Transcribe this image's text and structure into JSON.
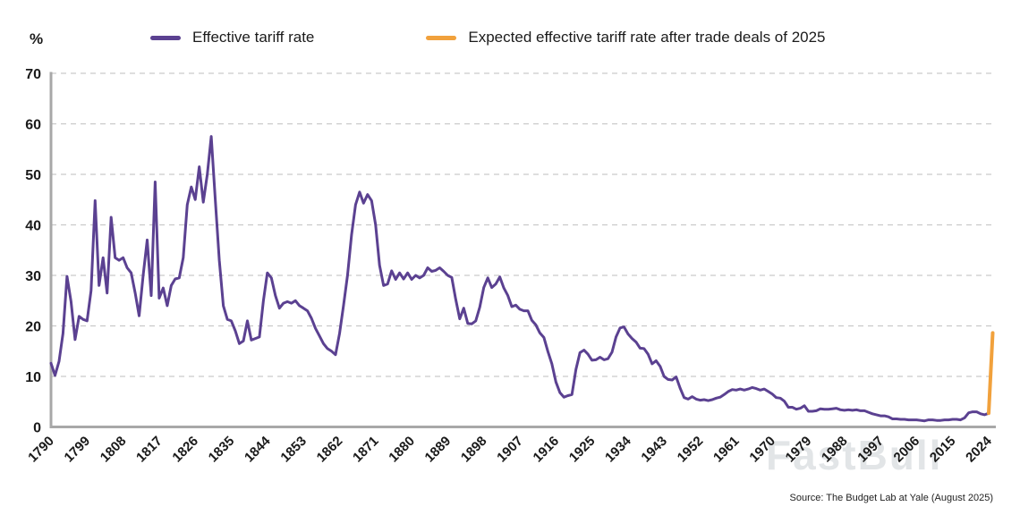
{
  "header": {
    "unit_label": "%"
  },
  "watermark": "FastBull",
  "chart_data": {
    "type": "line",
    "title": "",
    "xlabel": "",
    "ylabel": "%",
    "ylim": [
      0,
      70
    ],
    "xlim": [
      1790,
      2026
    ],
    "y_ticks": [
      0,
      10,
      20,
      30,
      40,
      50,
      60,
      70
    ],
    "x_ticks": [
      1790,
      1799,
      1808,
      1817,
      1826,
      1835,
      1844,
      1853,
      1862,
      1871,
      1880,
      1889,
      1898,
      1907,
      1916,
      1925,
      1934,
      1943,
      1952,
      1961,
      1970,
      1979,
      1988,
      1997,
      2006,
      2015,
      2024
    ],
    "grid": "horizontal-dashed",
    "legend_position": "top",
    "source": "Source: The Budget Lab at Yale (August 2025)",
    "series": [
      {
        "name": "Effective tariff rate",
        "color": "#5b4191",
        "x_start": 1790,
        "x_step": 1,
        "values": [
          12.6,
          10.2,
          13.0,
          18.5,
          29.8,
          24.8,
          17.3,
          21.9,
          21.3,
          21.0,
          27.0,
          44.8,
          28.0,
          33.5,
          26.5,
          41.5,
          33.5,
          33.0,
          33.5,
          31.5,
          30.5,
          26.5,
          22.0,
          30.0,
          37.0,
          26.0,
          48.5,
          25.5,
          27.5,
          24.0,
          28.0,
          29.3,
          29.5,
          33.5,
          44.0,
          47.5,
          45.0,
          51.5,
          44.5,
          50.0,
          57.5,
          45.0,
          33.0,
          24.0,
          21.3,
          21.0,
          19.0,
          16.5,
          17.0,
          21.0,
          17.2,
          17.5,
          17.8,
          25.0,
          30.5,
          29.5,
          26.0,
          23.5,
          24.5,
          24.8,
          24.5,
          25.0,
          24.0,
          23.5,
          23.0,
          21.5,
          19.5,
          18.0,
          16.5,
          15.5,
          15.0,
          14.3,
          18.5,
          24.0,
          30.0,
          38.0,
          44.0,
          46.5,
          44.3,
          46.0,
          44.8,
          40.0,
          32.0,
          28.0,
          28.3,
          30.9,
          29.2,
          30.5,
          29.3,
          30.5,
          29.2,
          30.0,
          29.5,
          30.0,
          31.5,
          30.8,
          31.0,
          31.5,
          30.8,
          30.0,
          29.6,
          25.3,
          21.4,
          23.5,
          20.5,
          20.4,
          21.0,
          23.7,
          27.6,
          29.5,
          27.6,
          28.3,
          29.7,
          27.5,
          26.0,
          23.8,
          24.1,
          23.3,
          23.0,
          23.0,
          21.1,
          20.2,
          18.6,
          17.7,
          14.9,
          12.5,
          8.9,
          6.8,
          5.9,
          6.2,
          6.4,
          11.4,
          14.7,
          15.2,
          14.4,
          13.2,
          13.3,
          13.8,
          13.3,
          13.5,
          14.8,
          17.8,
          19.6,
          19.8,
          18.4,
          17.5,
          16.8,
          15.6,
          15.5,
          14.4,
          12.5,
          13.1,
          12.0,
          10.0,
          9.4,
          9.3,
          9.9,
          7.7,
          5.8,
          5.5,
          6.0,
          5.5,
          5.3,
          5.4,
          5.2,
          5.4,
          5.7,
          5.9,
          6.4,
          7.0,
          7.4,
          7.3,
          7.5,
          7.3,
          7.5,
          7.8,
          7.6,
          7.3,
          7.5,
          7.0,
          6.5,
          5.8,
          5.7,
          5.1,
          3.9,
          3.9,
          3.5,
          3.7,
          4.2,
          3.1,
          3.1,
          3.2,
          3.6,
          3.5,
          3.5,
          3.6,
          3.7,
          3.4,
          3.3,
          3.4,
          3.3,
          3.4,
          3.2,
          3.2,
          2.9,
          2.6,
          2.4,
          2.2,
          2.2,
          2.0,
          1.6,
          1.6,
          1.5,
          1.5,
          1.4,
          1.4,
          1.4,
          1.3,
          1.2,
          1.4,
          1.4,
          1.3,
          1.3,
          1.4,
          1.4,
          1.5,
          1.5,
          1.4,
          1.8,
          2.8,
          3.0,
          3.0,
          2.6,
          2.4,
          2.7
        ]
      },
      {
        "name": "Expected effective tariff rate after trade deals of 2025",
        "color": "#f1a13c",
        "x": [
          2024,
          2025
        ],
        "values": [
          2.7,
          18.6
        ]
      }
    ]
  }
}
